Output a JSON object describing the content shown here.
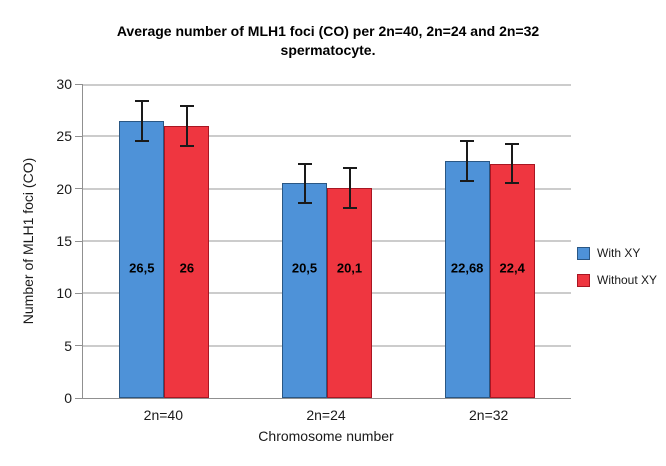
{
  "title": {
    "line1": "Average number of MLH1 foci (CO) per 2n=40, 2n=24 and 2n=32",
    "line2": "spermatocyte."
  },
  "chart_data": {
    "type": "bar",
    "title": "Average number of MLH1 foci (CO) per 2n=40, 2n=24 and 2n=32 spermatocyte.",
    "xlabel": "Chromosome number",
    "ylabel": "Number of MLH1 foci (CO)",
    "categories": [
      "2n=40",
      "2n=24",
      "2n=32"
    ],
    "series": [
      {
        "name": "With XY",
        "color": "#4e92d8",
        "border_color": "#2a5784",
        "values": [
          26.5,
          20.5,
          22.68
        ],
        "labels": [
          "26,5",
          "20,5",
          "22,68"
        ],
        "errors": [
          2.0,
          2.0,
          2.0
        ]
      },
      {
        "name": "Without XY",
        "color": "#ef3640",
        "border_color": "#a81622",
        "values": [
          26,
          20.1,
          22.4
        ],
        "labels": [
          "26",
          "20,1",
          "22,4"
        ],
        "errors": [
          2.0,
          2.0,
          2.0
        ]
      }
    ],
    "ylim": [
      0,
      30
    ],
    "yticks": [
      0,
      5,
      10,
      15,
      20,
      25,
      30
    ],
    "grid": "horizontal",
    "legend_position": "right",
    "error_bars": true,
    "gridline_color": "#cccccc",
    "axis_color": "#909090",
    "error_bar_color": "#1a1a1a"
  }
}
